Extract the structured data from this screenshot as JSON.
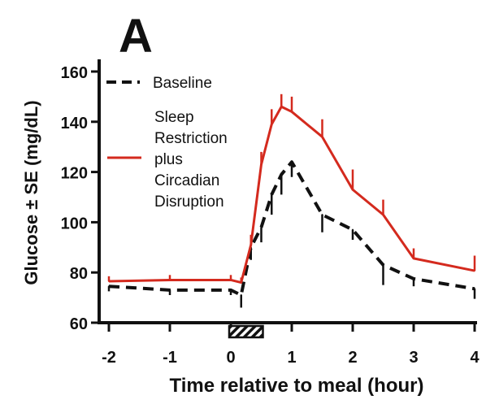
{
  "chart_data": {
    "type": "line",
    "panel_label": "A",
    "xlabel": "Time relative to meal (hour)",
    "ylabel": "Glucose ± SE (mg/dL)",
    "xlim": [
      -2,
      4
    ],
    "ylim": [
      60,
      160
    ],
    "xticks": [
      -2,
      -1,
      0,
      1,
      2,
      3,
      4
    ],
    "yticks": [
      60,
      80,
      100,
      120,
      140,
      160
    ],
    "grid": false,
    "legend_placement": "top-left",
    "meal_marker": {
      "x_start": 0,
      "x_end": 0.5,
      "pattern": "hatched"
    },
    "series": [
      {
        "name": "Baseline",
        "style": "dashed",
        "color": "#111111",
        "x": [
          -2,
          -1,
          0,
          0.17,
          0.33,
          0.5,
          0.67,
          0.83,
          1.0,
          1.5,
          2,
          2.5,
          3,
          4
        ],
        "y": [
          74.5,
          73,
          73,
          71,
          90,
          98,
          111,
          119,
          124,
          103,
          97,
          83,
          77.5,
          73.5
        ],
        "se": [
          2,
          2,
          2,
          5,
          5,
          6,
          8,
          8,
          6,
          7,
          4,
          8,
          3,
          4
        ],
        "se_direction": "down"
      },
      {
        "name": "Sleep Restriction plus Circadian Disruption",
        "legend_lines": [
          "Sleep",
          "Restriction",
          "plus",
          "Circadian",
          "Disruption"
        ],
        "style": "solid",
        "color": "#d42a1e",
        "x": [
          -2,
          -1,
          0,
          0.17,
          0.33,
          0.5,
          0.67,
          0.83,
          1.0,
          1.5,
          2,
          2.5,
          3,
          4
        ],
        "y": [
          76.5,
          77,
          77,
          76,
          91,
          123,
          139,
          146,
          144,
          134,
          113,
          103,
          85.6,
          80.7
        ],
        "se": [
          2,
          2,
          2,
          2,
          4,
          5,
          6,
          5,
          6,
          7,
          8,
          6,
          4,
          6
        ],
        "se_direction": "up"
      }
    ]
  }
}
